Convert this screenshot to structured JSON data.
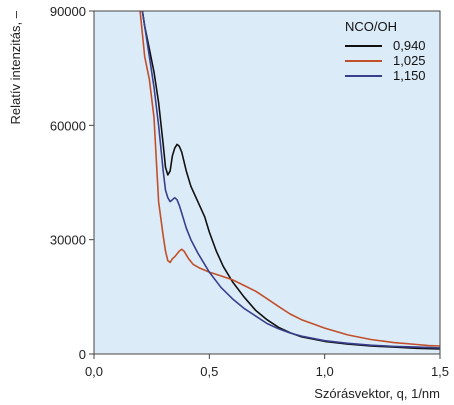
{
  "chart_data": {
    "type": "line",
    "xlabel": "Szórásvektor, q, 1/nm",
    "ylabel": "Relatív intenzitás, –",
    "xlim": [
      0,
      1.5
    ],
    "ylim": [
      0,
      90000
    ],
    "x_ticks": [
      0.0,
      0.5,
      1.0,
      1.5
    ],
    "x_tick_labels": [
      "0,0",
      "0,5",
      "1,0",
      "1,5"
    ],
    "y_ticks": [
      0,
      30000,
      60000,
      90000
    ],
    "y_tick_labels": [
      "0",
      "30000",
      "60000",
      "90000"
    ],
    "grid": false,
    "plot_background": "#dcebf8",
    "legend": {
      "title": "NCO/OH",
      "position": "top-right"
    },
    "series": [
      {
        "name": "0,940",
        "color": "#111111",
        "x": [
          0.21,
          0.22,
          0.24,
          0.26,
          0.28,
          0.3,
          0.31,
          0.32,
          0.33,
          0.34,
          0.35,
          0.36,
          0.37,
          0.38,
          0.4,
          0.42,
          0.45,
          0.48,
          0.5,
          0.53,
          0.56,
          0.6,
          0.65,
          0.7,
          0.75,
          0.8,
          0.85,
          0.9,
          1.0,
          1.1,
          1.2,
          1.3,
          1.4,
          1.5
        ],
        "y": [
          90000,
          86000,
          80000,
          74000,
          66000,
          55000,
          49000,
          47000,
          48000,
          52000,
          54000,
          55000,
          54500,
          53000,
          48000,
          44000,
          40000,
          36000,
          32000,
          27000,
          23000,
          19000,
          15000,
          11500,
          9000,
          7000,
          5600,
          4500,
          3300,
          2600,
          2100,
          1800,
          1500,
          1300
        ]
      },
      {
        "name": "1,025",
        "color": "#c0502a",
        "x": [
          0.2,
          0.21,
          0.22,
          0.24,
          0.26,
          0.28,
          0.3,
          0.31,
          0.32,
          0.33,
          0.34,
          0.35,
          0.37,
          0.38,
          0.39,
          0.41,
          0.43,
          0.46,
          0.5,
          0.55,
          0.6,
          0.65,
          0.7,
          0.75,
          0.8,
          0.85,
          0.9,
          1.0,
          1.1,
          1.2,
          1.3,
          1.4,
          1.45,
          1.5
        ],
        "y": [
          90000,
          84000,
          78000,
          72000,
          62000,
          40000,
          31000,
          27000,
          24500,
          24000,
          25000,
          25500,
          27000,
          27500,
          27000,
          25000,
          23500,
          22500,
          21500,
          20500,
          19500,
          18000,
          16500,
          14500,
          12500,
          10500,
          9000,
          6800,
          5000,
          3800,
          3000,
          2500,
          2200,
          2100
        ]
      },
      {
        "name": "1,150",
        "color": "#3a3f8c",
        "x": [
          0.21,
          0.22,
          0.24,
          0.26,
          0.28,
          0.3,
          0.31,
          0.32,
          0.33,
          0.34,
          0.35,
          0.36,
          0.37,
          0.38,
          0.4,
          0.42,
          0.45,
          0.48,
          0.5,
          0.55,
          0.6,
          0.65,
          0.7,
          0.75,
          0.8,
          0.85,
          0.9,
          1.0,
          1.1,
          1.2,
          1.3,
          1.4,
          1.5
        ],
        "y": [
          90000,
          86000,
          78000,
          70000,
          60000,
          48000,
          43000,
          41000,
          40000,
          40500,
          41000,
          40500,
          39000,
          37000,
          33000,
          30000,
          26500,
          23500,
          21500,
          17500,
          14500,
          12000,
          10000,
          8000,
          6600,
          5500,
          4700,
          3500,
          2800,
          2300,
          2000,
          1800,
          1600
        ]
      }
    ]
  }
}
